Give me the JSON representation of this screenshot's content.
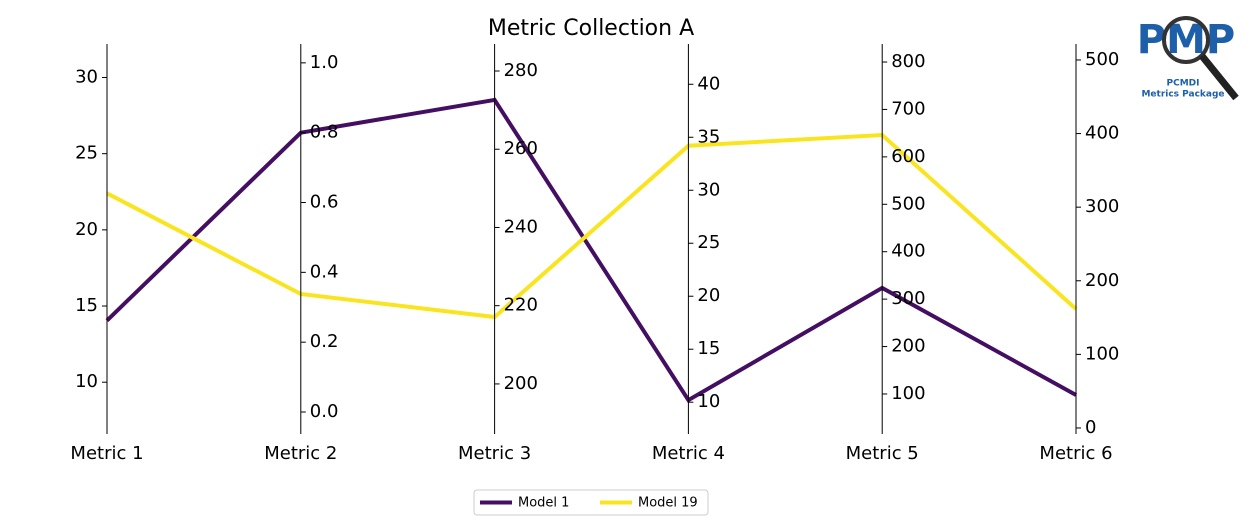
{
  "chart_data": {
    "type": "parallel",
    "title": "Metric Collection A",
    "axes": [
      {
        "name": "Metric 1",
        "ylim": [
          6.6,
          32.2
        ],
        "yticks": [
          10,
          15,
          20,
          25,
          30
        ],
        "labels": "left"
      },
      {
        "name": "Metric 2",
        "ylim": [
          -0.063,
          1.054
        ],
        "yticks": [
          {
            "value": 0,
            "label": "0.0"
          },
          0.2,
          0.4,
          0.6,
          0.8,
          {
            "value": 1,
            "label": "1.0"
          }
        ],
        "labels": "right"
      },
      {
        "name": "Metric 3",
        "ylim": [
          187.2,
          286.9
        ],
        "yticks": [
          200,
          220,
          240,
          260,
          280
        ],
        "labels": "right"
      },
      {
        "name": "Metric 4",
        "ylim": [
          7.0,
          43.8
        ],
        "yticks": [
          10,
          15,
          20,
          25,
          30,
          35,
          40
        ],
        "labels": "right"
      },
      {
        "name": "Metric 5",
        "ylim": [
          15.6,
          838
        ],
        "yticks": [
          100,
          200,
          300,
          400,
          500,
          600,
          700,
          800
        ],
        "labels": "right"
      },
      {
        "name": "Metric 6",
        "ylim": [
          -8.2,
          521.7
        ],
        "yticks": [
          0,
          100,
          200,
          300,
          400,
          500
        ],
        "labels": "right"
      }
    ],
    "series": [
      {
        "name": "Model 1",
        "color": "#440f62",
        "values": [
          14.05,
          0.8,
          272.6,
          10.2,
          323.6,
          44.8
        ]
      },
      {
        "name": "Model 19",
        "color": "#f9e51f",
        "values": [
          22.4,
          0.338,
          217.1,
          34.2,
          646,
          161.7
        ]
      }
    ],
    "legend": "lower center"
  },
  "logo": {
    "text": "PMP",
    "line1": "PCMDI",
    "line2": "Metrics Package"
  }
}
